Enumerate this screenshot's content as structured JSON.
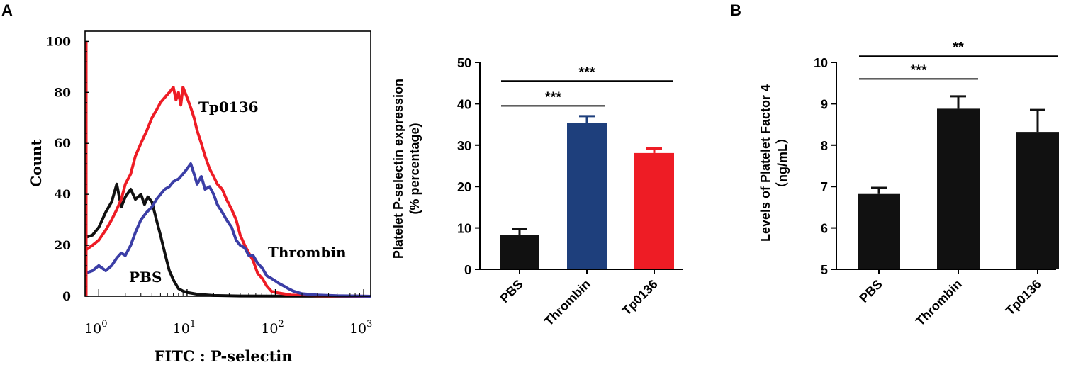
{
  "panels": {
    "A": "A",
    "B": "B"
  },
  "colors": {
    "pbs": "#111111",
    "thrombin": "#3b3ea6",
    "tp0136": "#ee1c25",
    "thrombin_bar": "#1e3f7c",
    "tp0136_bar": "#ee1c25",
    "axis": "#000000"
  },
  "chart_data": [
    {
      "type": "line",
      "xlabel": "FITC : P-selectin",
      "ylabel": "Count",
      "xscale": "log",
      "xlim": [
        0.7,
        1200
      ],
      "ylim": [
        0,
        104
      ],
      "yticks": [
        "0",
        "20",
        "40",
        "60",
        "80",
        "100"
      ],
      "xticks": [
        {
          "base": "10",
          "exp": "0",
          "value": 1
        },
        {
          "base": "10",
          "exp": "1",
          "value": 10
        },
        {
          "base": "10",
          "exp": "2",
          "value": 100
        },
        {
          "base": "10",
          "exp": "3",
          "value": 1000
        }
      ],
      "series": [
        {
          "name": "PBS",
          "color": "#111111",
          "points": [
            [
              0.7,
              23
            ],
            [
              0.85,
              24
            ],
            [
              1.0,
              27
            ],
            [
              1.2,
              33
            ],
            [
              1.4,
              37
            ],
            [
              1.6,
              44
            ],
            [
              1.8,
              35
            ],
            [
              2.0,
              39
            ],
            [
              2.3,
              42
            ],
            [
              2.6,
              38
            ],
            [
              3.0,
              40
            ],
            [
              3.3,
              36
            ],
            [
              3.6,
              39
            ],
            [
              4.0,
              37
            ],
            [
              4.5,
              30
            ],
            [
              5.0,
              24
            ],
            [
              5.6,
              17
            ],
            [
              6.3,
              10
            ],
            [
              7.1,
              6
            ],
            [
              8.0,
              3
            ],
            [
              9.0,
              2
            ],
            [
              10,
              1.5
            ],
            [
              13,
              0.8
            ],
            [
              20,
              0.3
            ],
            [
              40,
              0.1
            ],
            [
              1000,
              0
            ]
          ]
        },
        {
          "name": "Tp0136",
          "color": "#ee1c25",
          "points": [
            [
              0.7,
              18
            ],
            [
              0.85,
              20
            ],
            [
              1.0,
              22
            ],
            [
              1.2,
              26
            ],
            [
              1.4,
              30
            ],
            [
              1.6,
              34
            ],
            [
              1.8,
              38
            ],
            [
              2.0,
              44
            ],
            [
              2.3,
              48
            ],
            [
              2.6,
              55
            ],
            [
              3.0,
              60
            ],
            [
              3.5,
              65
            ],
            [
              4.0,
              70
            ],
            [
              4.5,
              73
            ],
            [
              5.0,
              76
            ],
            [
              5.6,
              78
            ],
            [
              6.3,
              80
            ],
            [
              7.0,
              82
            ],
            [
              7.5,
              77
            ],
            [
              8.0,
              80
            ],
            [
              8.5,
              75
            ],
            [
              9.0,
              82
            ],
            [
              10,
              78
            ],
            [
              11,
              74
            ],
            [
              12,
              70
            ],
            [
              13,
              65
            ],
            [
              14.5,
              60
            ],
            [
              16,
              55
            ],
            [
              18,
              50
            ],
            [
              20,
              47
            ],
            [
              22,
              44
            ],
            [
              25,
              42
            ],
            [
              28,
              38
            ],
            [
              32,
              34
            ],
            [
              36,
              30
            ],
            [
              40,
              24
            ],
            [
              45,
              20
            ],
            [
              50,
              17
            ],
            [
              56,
              14
            ],
            [
              63,
              9
            ],
            [
              71,
              7
            ],
            [
              80,
              4
            ],
            [
              90,
              2
            ],
            [
              100,
              1.5
            ],
            [
              150,
              0.5
            ],
            [
              300,
              0.2
            ],
            [
              1200,
              0
            ]
          ]
        },
        {
          "name": "Thrombin",
          "color": "#3b3ea6",
          "points": [
            [
              0.7,
              9
            ],
            [
              0.85,
              10
            ],
            [
              1.0,
              12
            ],
            [
              1.2,
              10
            ],
            [
              1.4,
              12
            ],
            [
              1.6,
              15
            ],
            [
              1.8,
              17
            ],
            [
              2.0,
              16
            ],
            [
              2.3,
              20
            ],
            [
              2.6,
              25
            ],
            [
              3.0,
              30
            ],
            [
              3.5,
              33
            ],
            [
              4.0,
              35
            ],
            [
              4.5,
              38
            ],
            [
              5.0,
              40
            ],
            [
              5.6,
              42
            ],
            [
              6.3,
              43
            ],
            [
              7.0,
              45
            ],
            [
              8.0,
              46
            ],
            [
              9.0,
              48
            ],
            [
              10,
              50
            ],
            [
              11,
              52
            ],
            [
              12,
              48
            ],
            [
              13,
              44
            ],
            [
              14.5,
              47
            ],
            [
              16,
              42
            ],
            [
              18,
              43
            ],
            [
              20,
              40
            ],
            [
              22,
              36
            ],
            [
              25,
              33
            ],
            [
              28,
              30
            ],
            [
              32,
              27
            ],
            [
              36,
              22
            ],
            [
              40,
              20
            ],
            [
              45,
              19
            ],
            [
              50,
              16
            ],
            [
              56,
              16
            ],
            [
              63,
              13
            ],
            [
              71,
              11
            ],
            [
              80,
              8
            ],
            [
              90,
              7
            ],
            [
              100,
              6
            ],
            [
              110,
              5
            ],
            [
              125,
              4
            ],
            [
              140,
              3
            ],
            [
              160,
              2
            ],
            [
              200,
              1
            ],
            [
              300,
              0.5
            ],
            [
              500,
              0.2
            ],
            [
              1200,
              0
            ]
          ]
        }
      ],
      "annotations": [
        {
          "text": "Tp0136",
          "series": "Tp0136"
        },
        {
          "text": "Thrombin",
          "series": "Thrombin"
        },
        {
          "text": "PBS",
          "series": "PBS"
        }
      ]
    },
    {
      "type": "bar",
      "categories": [
        "PBS",
        "Thrombin",
        "Tp0136"
      ],
      "values": [
        8.3,
        35.3,
        28.1
      ],
      "errors": [
        1.5,
        1.7,
        1.1
      ],
      "colors": [
        "#111111",
        "#1e3f7c",
        "#ee1c25"
      ],
      "ylabel_line1": "Platelet P-selectin expression",
      "ylabel_line2": "(% percentage)",
      "ylim": [
        0,
        50
      ],
      "yticks": [
        "0",
        "10",
        "20",
        "30",
        "40",
        "50"
      ],
      "significance": [
        {
          "from": 0,
          "to": 1,
          "y": 39.5,
          "label": "***"
        },
        {
          "from": 0,
          "to": 2,
          "y": 45.5,
          "label": "***"
        }
      ]
    },
    {
      "type": "bar",
      "categories": [
        "PBS",
        "Thrombin",
        "Tp0136"
      ],
      "values": [
        6.82,
        8.88,
        8.32
      ],
      "errors": [
        0.15,
        0.3,
        0.53
      ],
      "colors": [
        "#111111",
        "#111111",
        "#111111"
      ],
      "ylabel_line1": "Levels of Platelet Factor 4",
      "ylabel_line2": "（ng/mL）",
      "ylim": [
        5,
        10
      ],
      "yticks": [
        "5",
        "6",
        "7",
        "8",
        "9",
        "10"
      ],
      "significance": [
        {
          "from": 0,
          "to": 1,
          "y": 9.6,
          "label": "***"
        },
        {
          "from": 0,
          "to": 2,
          "y": 10.15,
          "label": "**"
        }
      ]
    }
  ]
}
